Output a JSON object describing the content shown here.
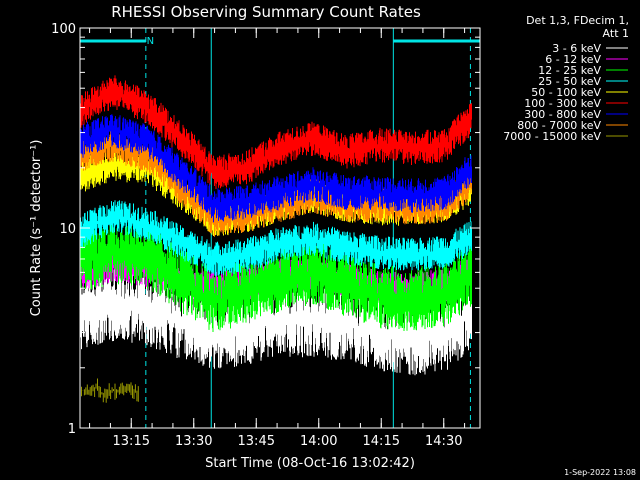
{
  "chart_data": {
    "type": "line",
    "title": "RHESSI Observing Summary Count Rates",
    "xlabel": "Start Time (08-Oct-16 13:02:42)",
    "ylabel": "Count Rate (s⁻¹ detector⁻¹)",
    "yscale": "log",
    "ylim": [
      1,
      100
    ],
    "xlim_minutes": [
      0,
      96
    ],
    "x_ticks": [
      "13:15",
      "13:30",
      "13:45",
      "14:00",
      "14:15",
      "14:30"
    ],
    "x_tick_minutes": [
      12.3,
      27.3,
      42.3,
      57.3,
      72.3,
      87.3
    ],
    "y_ticks": [
      "1",
      "10",
      "100"
    ],
    "y_tick_values": [
      1,
      10,
      100
    ],
    "legend_header": [
      "Det 1,3, FDecim 1,",
      "Att 1"
    ],
    "legend_position": "right",
    "annotation_n": "N",
    "annotation_n_minute": 16,
    "night_intervals_minutes": [
      [
        0,
        15.8
      ],
      [
        75.2,
        96
      ]
    ],
    "dashed_lines_minutes": [
      15.8,
      93.7
    ],
    "solid_lines_minutes": [
      31.5,
      75.2
    ],
    "series": [
      {
        "name": "3 - 6 keV",
        "color": "#ffffff",
        "x": [
          0,
          8,
          16,
          24,
          32,
          40,
          48,
          56,
          64,
          72,
          80,
          88,
          94
        ],
        "values": [
          3.8,
          4.2,
          4.0,
          3.4,
          3.0,
          3.2,
          3.5,
          3.5,
          3.3,
          3.0,
          2.8,
          3.0,
          3.8
        ]
      },
      {
        "name": "6 - 12 keV",
        "color": "#ff00ff",
        "x": [
          0,
          8,
          16,
          24,
          32,
          40,
          48,
          56,
          64,
          72,
          80,
          88,
          94
        ],
        "values": [
          5.8,
          6.5,
          6.2,
          5.6,
          5.0,
          5.3,
          5.8,
          5.9,
          5.5,
          5.0,
          4.9,
          5.2,
          6.0
        ]
      },
      {
        "name": "12 - 25 keV",
        "color": "#00ff00",
        "x": [
          0,
          8,
          16,
          24,
          32,
          40,
          48,
          56,
          64,
          72,
          80,
          88,
          94
        ],
        "values": [
          6.8,
          7.6,
          7.2,
          5.5,
          4.3,
          4.8,
          5.5,
          6.0,
          5.2,
          4.5,
          4.4,
          4.7,
          5.8
        ]
      },
      {
        "name": "25 - 50 keV",
        "color": "#00ffff",
        "x": [
          0,
          8,
          16,
          24,
          32,
          40,
          48,
          56,
          64,
          72,
          80,
          88,
          94
        ],
        "values": [
          9.5,
          11.5,
          10.5,
          8.5,
          7.0,
          7.3,
          8.3,
          8.8,
          8.0,
          7.5,
          7.3,
          7.6,
          9.0
        ]
      },
      {
        "name": "50 - 100 keV",
        "color": "#ffff00",
        "x": [
          0,
          8,
          16,
          24,
          32,
          40,
          48,
          56,
          64,
          72,
          80,
          88,
          94
        ],
        "values": [
          18,
          21,
          20,
          15,
          11,
          11.5,
          13,
          14.5,
          13,
          12.5,
          12.5,
          13,
          16
        ]
      },
      {
        "name": "100 - 300 keV",
        "color": "#ff0000",
        "x": [
          0,
          8,
          16,
          24,
          32,
          40,
          48,
          56,
          64,
          72,
          80,
          88,
          94
        ],
        "values": [
          38,
          48,
          40,
          28,
          19,
          20,
          25,
          28,
          24,
          26,
          25,
          26,
          35
        ]
      },
      {
        "name": "300 - 800 keV",
        "color": "#0000ff",
        "x": [
          0,
          8,
          16,
          24,
          32,
          40,
          48,
          56,
          64,
          72,
          80,
          88,
          94
        ],
        "values": [
          27,
          31,
          27,
          19,
          13,
          13.5,
          15,
          16.5,
          15,
          15,
          14.5,
          15,
          20
        ]
      },
      {
        "name": "800 - 7000 keV",
        "color": "#ff8800",
        "x": [
          0,
          8,
          16,
          24,
          32,
          40,
          48,
          56,
          64,
          72,
          80,
          88,
          94
        ],
        "values": [
          23,
          26,
          23,
          16,
          11,
          11.5,
          13,
          14.5,
          13,
          13,
          12.5,
          13,
          17
        ]
      },
      {
        "name": "7000 - 15000 keV",
        "color": "#999900",
        "x": [
          0,
          2,
          4,
          6,
          8,
          10,
          12,
          14
        ],
        "values": [
          1.55,
          1.5,
          1.6,
          1.45,
          1.55,
          1.5,
          1.6,
          1.5
        ]
      }
    ]
  },
  "timestamp": "1-Sep-2022 13:08"
}
